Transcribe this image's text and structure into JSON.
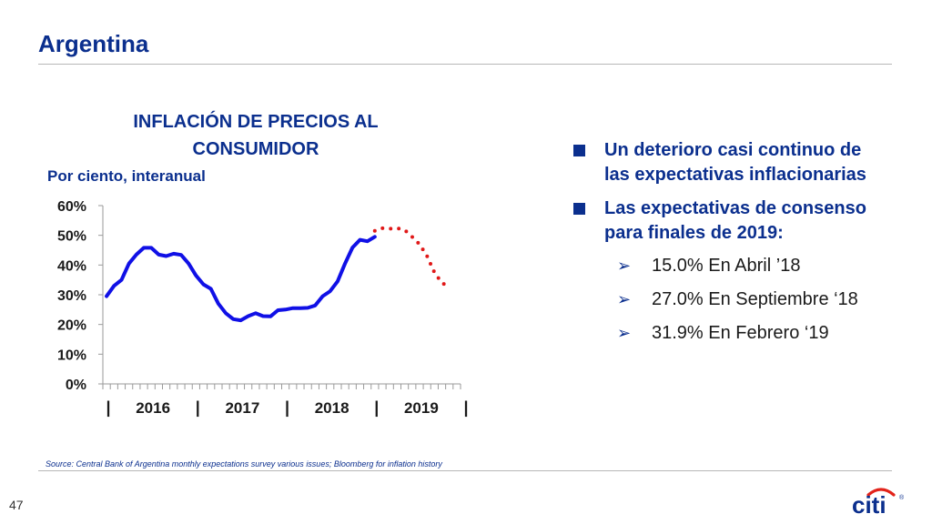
{
  "header": {
    "title": "Argentina"
  },
  "bullets": [
    {
      "text": "Un deterioro casi continuo de las expectativas inflacionarias"
    },
    {
      "text": "Las expectativas de consenso para finales de 2019:"
    }
  ],
  "sub_bullets": [
    {
      "text": "15.0% En Abril ’18"
    },
    {
      "text": "27.0% En Septiembre ‘18"
    },
    {
      "text": "31.9% En Febrero ‘19"
    }
  ],
  "footer": {
    "source": "Source: Central Bank of Argentina monthly expectations survey various issues; Bloomberg for inflation history",
    "page_number": "47",
    "logo_text": "citi",
    "logo_mark": "®"
  },
  "colors": {
    "accent": "#0b2f8e",
    "actual_line": "#1010e6",
    "expected_line": "#e01818"
  },
  "icons": {
    "bullet": "square-bullet-icon",
    "sub_bullet": "arrow-bullet-icon"
  },
  "chart_data": {
    "type": "line",
    "title": "INFLACIÓN DE PRECIOS AL CONSUMIDOR",
    "subtitle": "Por ciento, interanual",
    "ylim": [
      0,
      60
    ],
    "yticks": [
      "0%",
      "10%",
      "20%",
      "30%",
      "40%",
      "50%",
      "60%"
    ],
    "ytick_values": [
      0,
      10,
      20,
      30,
      40,
      50,
      60
    ],
    "x_range": [
      0,
      48
    ],
    "x_groups": [
      {
        "label": "2016",
        "start": 0,
        "end": 12
      },
      {
        "label": "2017",
        "start": 12,
        "end": 24
      },
      {
        "label": "2018",
        "start": 24,
        "end": 36
      },
      {
        "label": "2019",
        "start": 36,
        "end": 48
      }
    ],
    "group_separator": "|",
    "series": [
      {
        "style": "solid",
        "x": [
          0.5,
          1.5,
          2.5,
          3.5,
          4.5,
          5.5,
          6.5,
          7.5,
          8.5,
          9.5,
          10.5,
          11.5,
          12.5,
          13.5,
          14.5,
          15.5,
          16.5,
          17.5,
          18.5,
          19.5,
          20.5,
          21.5,
          22.5,
          23.5,
          24.5,
          25.5,
          26.5,
          27.5,
          28.5,
          29.5,
          30.5,
          31.5,
          32.5,
          33.5,
          34.5,
          35.5,
          36.5
        ],
        "y": [
          29.5,
          33,
          35,
          40.5,
          43.5,
          45.8,
          45.8,
          43.5,
          43,
          43.8,
          43.4,
          40.5,
          36.5,
          33.5,
          32,
          27,
          23.8,
          21.8,
          21.4,
          22.8,
          23.8,
          22.8,
          22.7,
          24.8,
          25,
          25.5,
          25.5,
          25.6,
          26.4,
          29.5,
          31.2,
          34.5,
          40.5,
          45.9,
          48.5,
          48,
          49.5
        ]
      },
      {
        "style": "dotted",
        "x": [
          36.5,
          37.5,
          38.5,
          39.5,
          40.5,
          41.5,
          42.5,
          43.5,
          44.5,
          45.5,
          46.5
        ],
        "y": [
          51.5,
          52.4,
          52.2,
          52.4,
          51.8,
          49.5,
          47,
          43,
          37.5,
          34,
          32.5
        ]
      }
    ]
  }
}
